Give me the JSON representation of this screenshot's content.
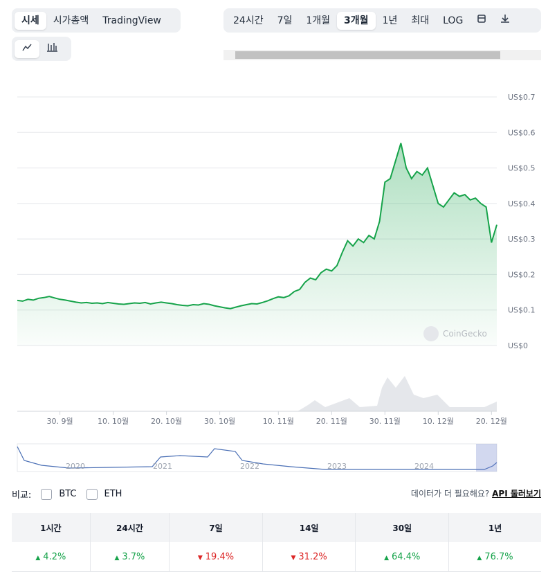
{
  "tabs": {
    "view": [
      "시세",
      "시가총액",
      "TradingView"
    ],
    "view_active": 0,
    "ranges": [
      "24시간",
      "7일",
      "1개월",
      "3개월",
      "1년",
      "최대",
      "LOG"
    ],
    "range_active": 3
  },
  "chart_data": {
    "type": "line",
    "color": "#16a34a",
    "grid": true,
    "values": [
      0.127,
      0.125,
      0.13,
      0.128,
      0.133,
      0.135,
      0.138,
      0.134,
      0.13,
      0.128,
      0.125,
      0.122,
      0.12,
      0.121,
      0.119,
      0.12,
      0.118,
      0.121,
      0.119,
      0.117,
      0.116,
      0.118,
      0.12,
      0.119,
      0.121,
      0.117,
      0.12,
      0.122,
      0.12,
      0.118,
      0.115,
      0.113,
      0.112,
      0.115,
      0.114,
      0.118,
      0.116,
      0.112,
      0.109,
      0.106,
      0.104,
      0.108,
      0.112,
      0.115,
      0.118,
      0.117,
      0.121,
      0.126,
      0.132,
      0.137,
      0.135,
      0.14,
      0.152,
      0.158,
      0.178,
      0.19,
      0.185,
      0.205,
      0.215,
      0.21,
      0.225,
      0.262,
      0.295,
      0.28,
      0.3,
      0.29,
      0.31,
      0.3,
      0.35,
      0.46,
      0.47,
      0.52,
      0.57,
      0.5,
      0.47,
      0.49,
      0.48,
      0.5,
      0.45,
      0.4,
      0.39,
      0.41,
      0.43,
      0.42,
      0.425,
      0.41,
      0.415,
      0.4,
      0.39,
      0.29,
      0.34
    ],
    "xlim": [
      0,
      90
    ],
    "xticks": [
      {
        "value": 8,
        "label": "30. 9월"
      },
      {
        "value": 18,
        "label": "10. 10월"
      },
      {
        "value": 28,
        "label": "20. 10월"
      },
      {
        "value": 38,
        "label": "30. 10월"
      },
      {
        "value": 49,
        "label": "10. 11월"
      },
      {
        "value": 59,
        "label": "20. 11월"
      },
      {
        "value": 69,
        "label": "30. 11월"
      },
      {
        "value": 79,
        "label": "10. 12월"
      },
      {
        "value": 89,
        "label": "20. 12월"
      }
    ],
    "ylim": [
      0,
      0.7
    ],
    "yticks": [
      {
        "value": 0,
        "label": "US$0"
      },
      {
        "value": 0.1,
        "label": "US$0.1"
      },
      {
        "value": 0.2,
        "label": "US$0.2"
      },
      {
        "value": 0.3,
        "label": "US$0.3"
      },
      {
        "value": 0.4,
        "label": "US$0.4"
      },
      {
        "value": 0.5,
        "label": "US$0.5"
      },
      {
        "value": 0.6,
        "label": "US$0.6"
      },
      {
        "value": 0.7,
        "label": "US$0.7"
      }
    ],
    "watermark": "CoinGecko",
    "navigator_years": [
      "2020",
      "2021",
      "2022",
      "2023",
      "2024"
    ]
  },
  "compare": {
    "label": "비교:",
    "options": [
      "BTC",
      "ETH"
    ],
    "prompt": "데이터가 더 필요해요?",
    "link": "API 둘러보기"
  },
  "table": {
    "headers": [
      "1시간",
      "24시간",
      "7일",
      "14일",
      "30일",
      "1년"
    ],
    "rows": [
      [
        {
          "text": "4.2%",
          "direction": "up"
        },
        {
          "text": "3.7%",
          "direction": "up"
        },
        {
          "text": "19.4%",
          "direction": "down"
        },
        {
          "text": "31.2%",
          "direction": "down"
        },
        {
          "text": "64.4%",
          "direction": "up"
        },
        {
          "text": "76.7%",
          "direction": "up"
        }
      ]
    ]
  }
}
